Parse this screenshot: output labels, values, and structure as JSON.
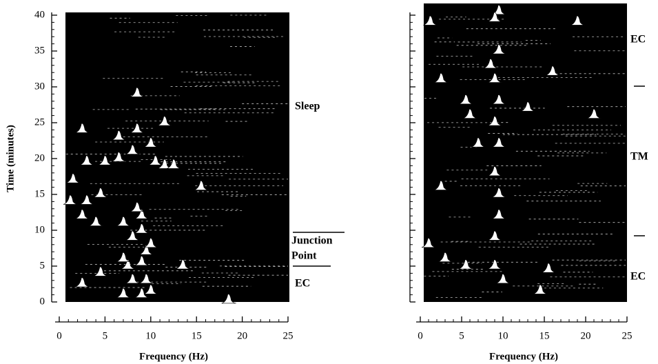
{
  "chart_data": [
    {
      "type": "spectral",
      "ylabel": "Time  (minutes)",
      "xlabel": "Frequency  (Hz)",
      "xlim": [
        0,
        25
      ],
      "xticks": [
        0,
        5,
        10,
        15,
        20,
        25
      ],
      "ylim": [
        0,
        40
      ],
      "yticks": [
        0,
        5,
        10,
        15,
        20,
        25,
        30,
        35,
        40
      ],
      "ytick_labels": true,
      "annotations": [
        "Sleep",
        "Junction",
        "Point",
        "EC"
      ],
      "x": [
        9,
        7,
        10,
        2.5,
        8,
        9.5,
        4.5,
        13.5,
        7.5,
        9,
        7,
        9.5,
        10,
        8,
        9,
        7,
        9,
        8.5,
        4,
        2.5,
        1.2,
        3,
        4.5,
        1.5,
        11.5,
        12.5,
        10.5,
        6.5,
        3,
        5,
        8,
        10,
        6.5,
        8.5,
        11.5,
        8.5,
        2.5,
        15.5,
        18.5
      ],
      "values": [
        1,
        1,
        1.5,
        2.5,
        3,
        3,
        4,
        5,
        5,
        5.5,
        6,
        7,
        8,
        9,
        10,
        11,
        12,
        13,
        11,
        12,
        14,
        14,
        15,
        17,
        19,
        19,
        19.5,
        20,
        19.5,
        19.5,
        21,
        22,
        23,
        24,
        25,
        29,
        24,
        16,
        0.2
      ]
    },
    {
      "type": "spectral",
      "xlabel": "Frequency  (Hz)",
      "xlim": [
        0,
        25
      ],
      "xticks": [
        0,
        5,
        10,
        15,
        20,
        25
      ],
      "ylim": [
        0,
        40
      ],
      "yticks": [
        0,
        5,
        10,
        15,
        20,
        25,
        30,
        35,
        40
      ],
      "ytick_labels": false,
      "annotations": [
        "EC",
        "TM",
        "EC"
      ],
      "x": [
        9.5,
        9,
        1.2,
        19,
        9.5,
        8.5,
        9,
        9.5,
        5.5,
        6,
        9,
        9.5,
        7,
        9,
        9.5,
        9.5,
        9,
        1,
        3,
        5.5,
        9,
        10,
        15.5,
        14.5,
        2.5,
        21,
        13,
        16,
        2.5
      ],
      "values": [
        40.5,
        39.5,
        39,
        39,
        35,
        33,
        31,
        28,
        28,
        26,
        25,
        22,
        22,
        18,
        15,
        12,
        9,
        8,
        6,
        5,
        5,
        3,
        4.5,
        1.5,
        16,
        26,
        27,
        32,
        31
      ]
    }
  ]
}
